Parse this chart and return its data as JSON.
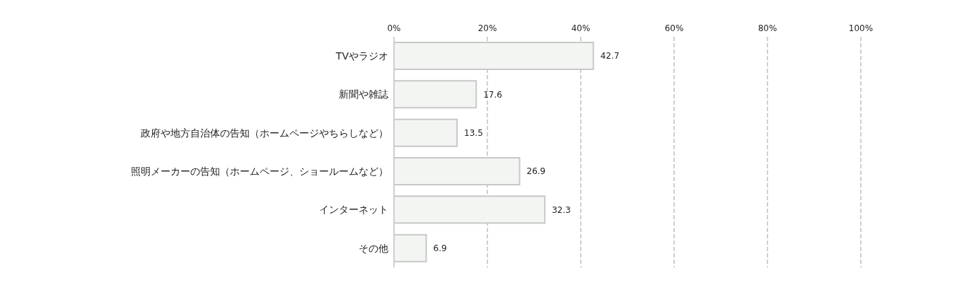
{
  "chart_data": {
    "type": "bar",
    "orientation": "horizontal",
    "categories": [
      "TVやラジオ",
      "新聞や雑誌",
      "政府や地方自治体の告知（ホームページやちらしなど）",
      "照明メーカーの告知（ホームページ、ショールームなど）",
      "インターネット",
      "その他"
    ],
    "values": [
      42.7,
      17.6,
      13.5,
      26.9,
      32.3,
      6.9
    ],
    "color": "#f3f5f3",
    "xlim": [
      0,
      100
    ],
    "xticks": [
      {
        "value": 0,
        "label": "0%"
      },
      {
        "value": 20,
        "label": "20%"
      },
      {
        "value": 40,
        "label": "40%"
      },
      {
        "value": 60,
        "label": "60%"
      },
      {
        "value": 80,
        "label": "80%"
      },
      {
        "value": 100,
        "label": "100%"
      }
    ],
    "grid": "x",
    "data_labels": true
  }
}
